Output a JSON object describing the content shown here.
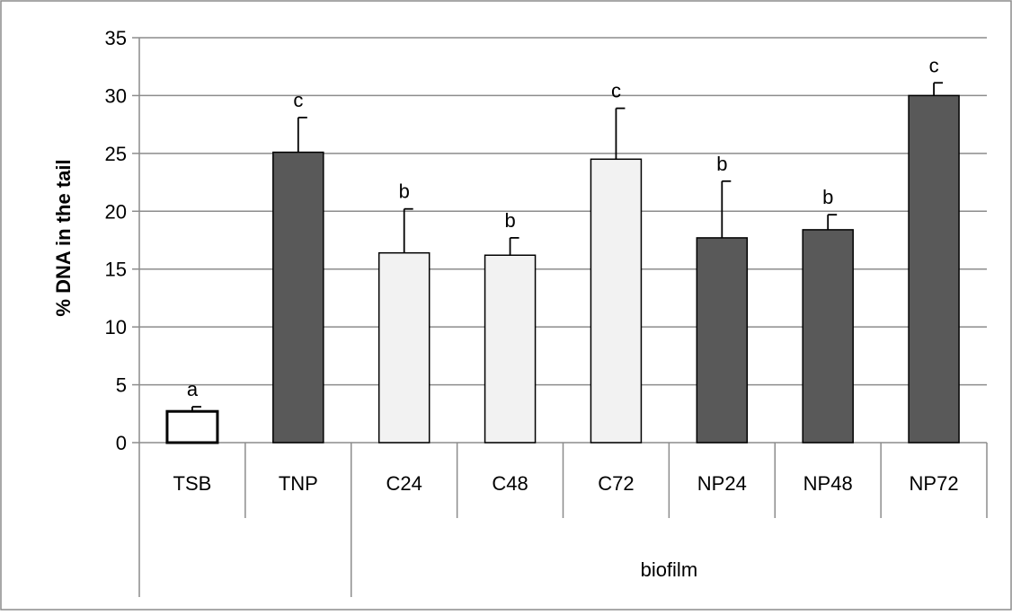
{
  "chart_data": {
    "type": "bar",
    "title": "",
    "ylabel": "% DNA in the tail",
    "xlabel": "",
    "ylim": [
      0,
      35
    ],
    "yticks": [
      0,
      5,
      10,
      15,
      20,
      25,
      30,
      35
    ],
    "ytick_labels": [
      "0",
      "5",
      "10",
      "15",
      "20",
      "25",
      "30",
      "35"
    ],
    "grid": true,
    "categories": [
      "TSB",
      "TNP",
      "C24",
      "C48",
      "C72",
      "NP24",
      "NP48",
      "NP72"
    ],
    "values": [
      2.7,
      25.1,
      16.4,
      16.2,
      24.5,
      17.7,
      18.4,
      30.0
    ],
    "errors": [
      0.4,
      3.0,
      3.8,
      1.5,
      4.4,
      4.9,
      1.3,
      1.1
    ],
    "significance": [
      "a",
      "c",
      "b",
      "b",
      "c",
      "b",
      "b",
      "c"
    ],
    "bar_styles": [
      "outline",
      "dark",
      "light",
      "light",
      "light",
      "dark",
      "dark",
      "dark"
    ],
    "groups": [
      {
        "label": "",
        "categories": [
          "TSB",
          "TNP"
        ]
      },
      {
        "label": "biofilm",
        "categories": [
          "C24",
          "C48",
          "C72",
          "NP24",
          "NP48",
          "NP72"
        ]
      }
    ],
    "colors": {
      "dark": "#595959",
      "light": "#f2f2f2",
      "outline": "#ffffff",
      "edge": "#000000",
      "grid": "#8c8c8c",
      "frame": "#8c8c8c"
    }
  }
}
